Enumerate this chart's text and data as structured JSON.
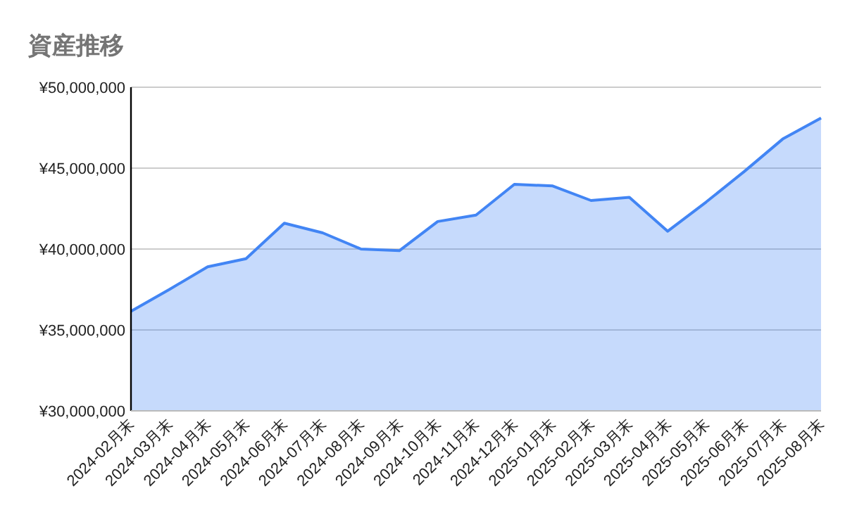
{
  "chart_data": {
    "type": "area",
    "title": "資産推移",
    "categories": [
      "2024-02月末",
      "2024-03月末",
      "2024-04月末",
      "2024-05月末",
      "2024-06月末",
      "2024-07月末",
      "2024-08月末",
      "2024-09月末",
      "2024-10月末",
      "2024-11月末",
      "2024-12月末",
      "2025-01月末",
      "2025-02月末",
      "2025-03月末",
      "2025-04月末",
      "2025-05月末",
      "2025-06月末",
      "2025-07月末",
      "2025-08月末"
    ],
    "series": [
      {
        "color": "#4285f4",
        "values": [
          36150000,
          37500000,
          38900000,
          39400000,
          41600000,
          41000000,
          40000000,
          39900000,
          41700000,
          42100000,
          44000000,
          43900000,
          43000000,
          43200000,
          41100000,
          42900000,
          44800000,
          46800000,
          48100000
        ]
      }
    ],
    "ylim": [
      30000000,
      50000000
    ],
    "yticks": [
      {
        "value": 30000000,
        "label": "¥30,000,000"
      },
      {
        "value": 35000000,
        "label": "¥35,000,000"
      },
      {
        "value": 40000000,
        "label": "¥40,000,000"
      },
      {
        "value": 45000000,
        "label": "¥45,000,000"
      },
      {
        "value": 50000000,
        "label": "¥50,000,000"
      }
    ],
    "grid": "y"
  }
}
